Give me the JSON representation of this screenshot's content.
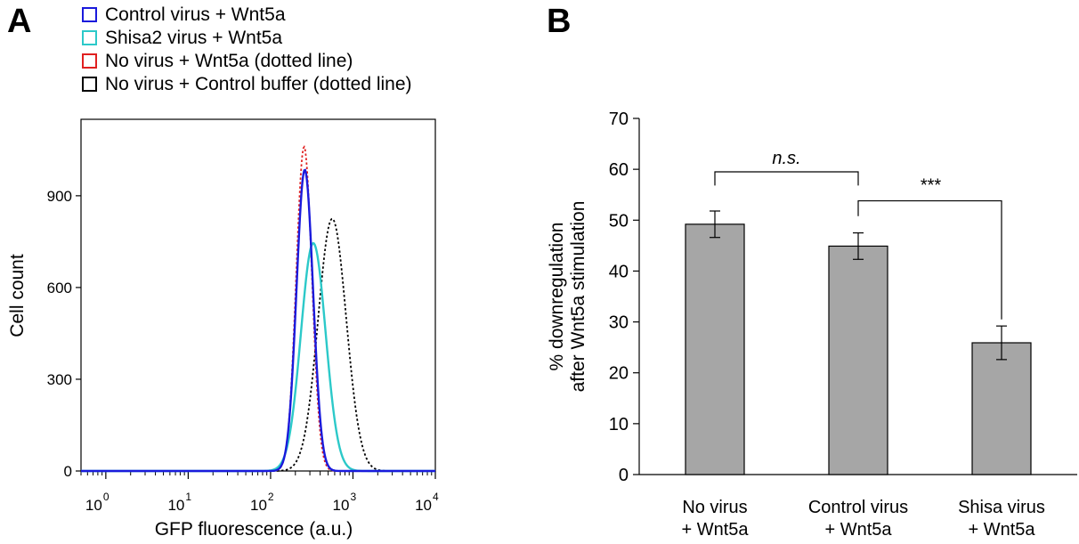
{
  "chart_data": [
    {
      "panel": "A",
      "type": "line",
      "xlabel": "GFP fluorescence (a.u.)",
      "ylabel": "Cell count",
      "xscale": "log",
      "xlim": [
        0.5,
        10000
      ],
      "ylim": [
        0,
        1150
      ],
      "yticks": [
        "0",
        "300",
        "600",
        "900"
      ],
      "xticks": [
        {
          "base": "10",
          "exp": "0"
        },
        {
          "base": "10",
          "exp": "1"
        },
        {
          "base": "10",
          "exp": "2"
        },
        {
          "base": "10",
          "exp": "3"
        },
        {
          "base": "10",
          "exp": "4"
        }
      ],
      "legend_position": "top-left",
      "series": [
        {
          "name": "Control virus + Wnt5a",
          "color": "#1a1adc",
          "style": "solid",
          "peak_x": 260,
          "peak_y": 985,
          "spread": 0.1
        },
        {
          "name": "Shisa2 virus + Wnt5a",
          "color": "#2cc9c9",
          "style": "solid",
          "peak_x": 330,
          "peak_y": 745,
          "spread": 0.15
        },
        {
          "name": "No virus + Wnt5a (dotted line)",
          "color": "#e02020",
          "style": "dotted",
          "peak_x": 255,
          "peak_y": 1060,
          "spread": 0.095
        },
        {
          "name": "No virus + Control buffer (dotted line)",
          "color": "#000000",
          "style": "dotted",
          "peak_x": 560,
          "peak_y": 825,
          "spread": 0.17
        }
      ]
    },
    {
      "panel": "B",
      "type": "bar",
      "ylabel_lines": [
        "% downregulation",
        "after Wnt5a stimulation"
      ],
      "ylim": [
        0,
        70
      ],
      "yticks": [
        "0",
        "10",
        "20",
        "30",
        "40",
        "50",
        "60",
        "70"
      ],
      "categories": [
        [
          "No virus",
          "+ Wnt5a"
        ],
        [
          "Control virus",
          "+ Wnt5a"
        ],
        [
          "Shisa virus",
          "+ Wnt5a"
        ]
      ],
      "values": [
        49.2,
        44.9,
        25.9
      ],
      "errors": [
        2.6,
        2.6,
        3.3
      ],
      "bar_color": "#a6a6a6",
      "significance": [
        {
          "from": 0,
          "to": 1,
          "label": "n.s."
        },
        {
          "from": 1,
          "to": 2,
          "label": "***"
        }
      ]
    }
  ]
}
